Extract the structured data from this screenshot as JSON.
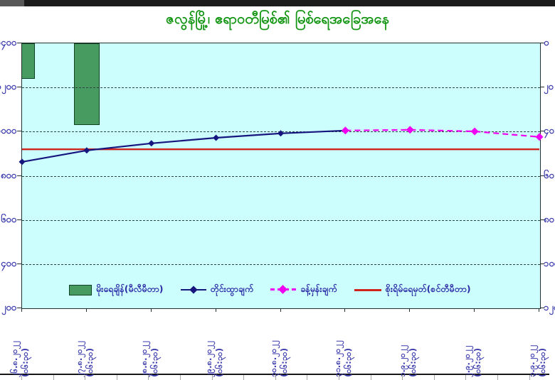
{
  "title": "ဇလွန်မြို့၊ ဧရာဝတီမြစ်၏ မြစ်ရေအခြေအနေ",
  "colors": {
    "title_green": "#149614",
    "plot_background": "#CCFEFE",
    "measured_line": "#16167E",
    "forecast_line": "#F000F0",
    "danger_line": "#CE241B",
    "rain_bar": "#479B60",
    "axis_text": "#3A3AAC"
  },
  "chart_data": {
    "type": "line",
    "title": "ဇလွန်မြို့၊ ဧရာဝတီမြစ်၏ မြစ်ရေအခြေအနေ",
    "categories": [
      "၂၆.၈.၂၀၂၂",
      "၂၇.၈.၂၀၂၂",
      "၂၈.၈.၂၀၂၂",
      "၂၉.၈.၂၀၂၂",
      "၃၀.၈.၂၀၂၂",
      "၃၁.၈.၂၀၂၂",
      "၁.၉.၂၀၂၂",
      "၂.၉.၂၀၂၂",
      "၃.၉.၂၀၂၂"
    ],
    "category_time_suffix": "(၀၆:၃၀)",
    "series": [
      {
        "name": "မိုးရေချိန်(မီလီမီတာ)",
        "type": "bar",
        "axis": "right",
        "color": "#479B60",
        "values": [
          16,
          37,
          null,
          null,
          null,
          null,
          null,
          null,
          null
        ]
      },
      {
        "name": "တိုင်းထွာချက်",
        "type": "line",
        "axis": "left",
        "color": "#16167E",
        "marker": "diamond",
        "values": [
          863,
          915,
          947,
          972,
          992,
          1005,
          null,
          null,
          null
        ]
      },
      {
        "name": "ခန့်မှန်းချက်",
        "type": "line",
        "dashed": true,
        "axis": "left",
        "color": "#F000F0",
        "marker": "diamond",
        "values": [
          null,
          null,
          null,
          null,
          null,
          1005,
          1008,
          1001,
          976
        ]
      },
      {
        "name": "စိုးရိမ်ရေမှတ်(စင်တီမီတာ)",
        "type": "hline",
        "axis": "left",
        "color": "#CE241B",
        "value": 920
      }
    ],
    "left_axis": {
      "min": 200,
      "max": 1400,
      "step": 200,
      "labels_clipped_at_image_edge": true
    },
    "right_axis": {
      "min": 0,
      "max": 120,
      "step": 20,
      "inverted": true,
      "labels_clipped_at_image_edge": true
    },
    "values_estimated_from_pixels": true,
    "grid": "horizontal-dashed",
    "legend_position": "inside-plot-lower"
  }
}
